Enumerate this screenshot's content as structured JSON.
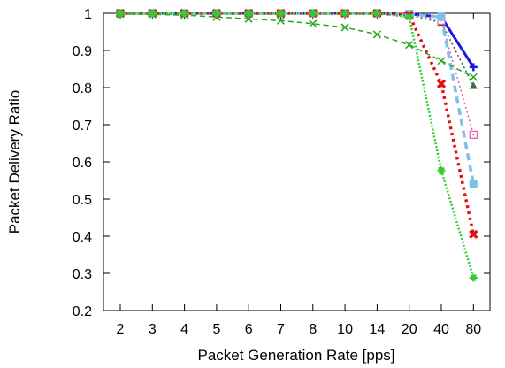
{
  "chart_data": {
    "type": "line",
    "title": "",
    "xlabel": "Packet Generation Rate [pps]",
    "ylabel": "Packet Delivery Ratio",
    "categories": [
      "2",
      "3",
      "4",
      "5",
      "6",
      "7",
      "8",
      "10",
      "14",
      "20",
      "40",
      "80"
    ],
    "ylim": [
      0.2,
      1.0
    ],
    "yticks": [
      0.2,
      0.3,
      0.4,
      0.5,
      0.6,
      0.7,
      0.8,
      0.9,
      1.0
    ],
    "ytick_labels": [
      "0.2",
      "0.3",
      "0.4",
      "0.5",
      "0.6",
      "0.7",
      "0.8",
      "0.9",
      "1"
    ],
    "grid": false,
    "legend": "none",
    "series": [
      {
        "color": "#1a1adb",
        "dash": "",
        "width": 3,
        "marker": "plus",
        "values": [
          1.0,
          1.0,
          1.0,
          1.0,
          1.0,
          1.0,
          1.0,
          1.0,
          1.0,
          0.998,
          0.99,
          0.855
        ]
      },
      {
        "color": "#3a6b3a",
        "dash": "2,3",
        "width": 1.5,
        "marker": "triangle",
        "values": [
          1.0,
          1.0,
          1.0,
          1.0,
          1.0,
          1.0,
          1.0,
          1.0,
          1.0,
          0.995,
          0.975,
          0.805
        ]
      },
      {
        "color": "#ee55aa",
        "dash": "2,3",
        "width": 1.5,
        "marker": "square-open",
        "values": [
          1.0,
          1.0,
          1.0,
          1.0,
          1.0,
          1.0,
          1.0,
          1.0,
          1.0,
          0.998,
          0.98,
          0.673
        ]
      },
      {
        "color": "#7cc2e8",
        "dash": "8,5",
        "width": 3.5,
        "marker": "square-filled",
        "values": [
          1.0,
          1.0,
          1.0,
          1.0,
          1.0,
          1.0,
          1.0,
          1.0,
          1.0,
          0.998,
          0.99,
          0.54
        ]
      },
      {
        "color": "#e01010",
        "dash": "3,4",
        "width": 3.5,
        "marker": "x-bold",
        "values": [
          1.0,
          1.0,
          1.0,
          1.0,
          1.0,
          1.0,
          1.0,
          1.0,
          1.0,
          0.995,
          0.81,
          0.405
        ]
      },
      {
        "color": "#22a822",
        "dash": "6,4",
        "width": 1.5,
        "marker": "x",
        "values": [
          0.998,
          0.997,
          0.995,
          0.99,
          0.985,
          0.98,
          0.972,
          0.962,
          0.943,
          0.915,
          0.872,
          0.828
        ]
      },
      {
        "color": "#33cc33",
        "dash": "2,2",
        "width": 2.5,
        "marker": "star",
        "values": [
          1.0,
          1.0,
          1.0,
          1.0,
          1.0,
          1.0,
          1.0,
          1.0,
          1.0,
          0.99,
          0.577,
          0.288
        ]
      }
    ]
  }
}
